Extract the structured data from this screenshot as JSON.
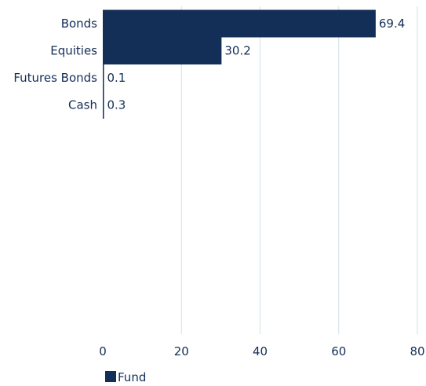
{
  "chart_data": {
    "type": "bar",
    "orientation": "horizontal",
    "categories": [
      "Bonds",
      "Equities",
      "Futures Bonds",
      "Cash"
    ],
    "series": [
      {
        "name": "Fund",
        "values": [
          69.4,
          30.2,
          0.1,
          0.3
        ]
      }
    ],
    "value_labels": [
      "69.4",
      "30.2",
      "0.1",
      "0.3"
    ],
    "xlim": [
      0,
      80
    ],
    "x_ticks": [
      0,
      20,
      40,
      60,
      80
    ],
    "x_tick_labels": [
      "0",
      "20",
      "40",
      "60",
      "80"
    ],
    "grid": "vertical",
    "legend_position": "bottom-left",
    "title": "",
    "xlabel": "",
    "ylabel": ""
  },
  "colors": {
    "bar": "#132e57",
    "text": "#132e57",
    "grid": "#cfe0ea",
    "axis": "#132e57"
  }
}
